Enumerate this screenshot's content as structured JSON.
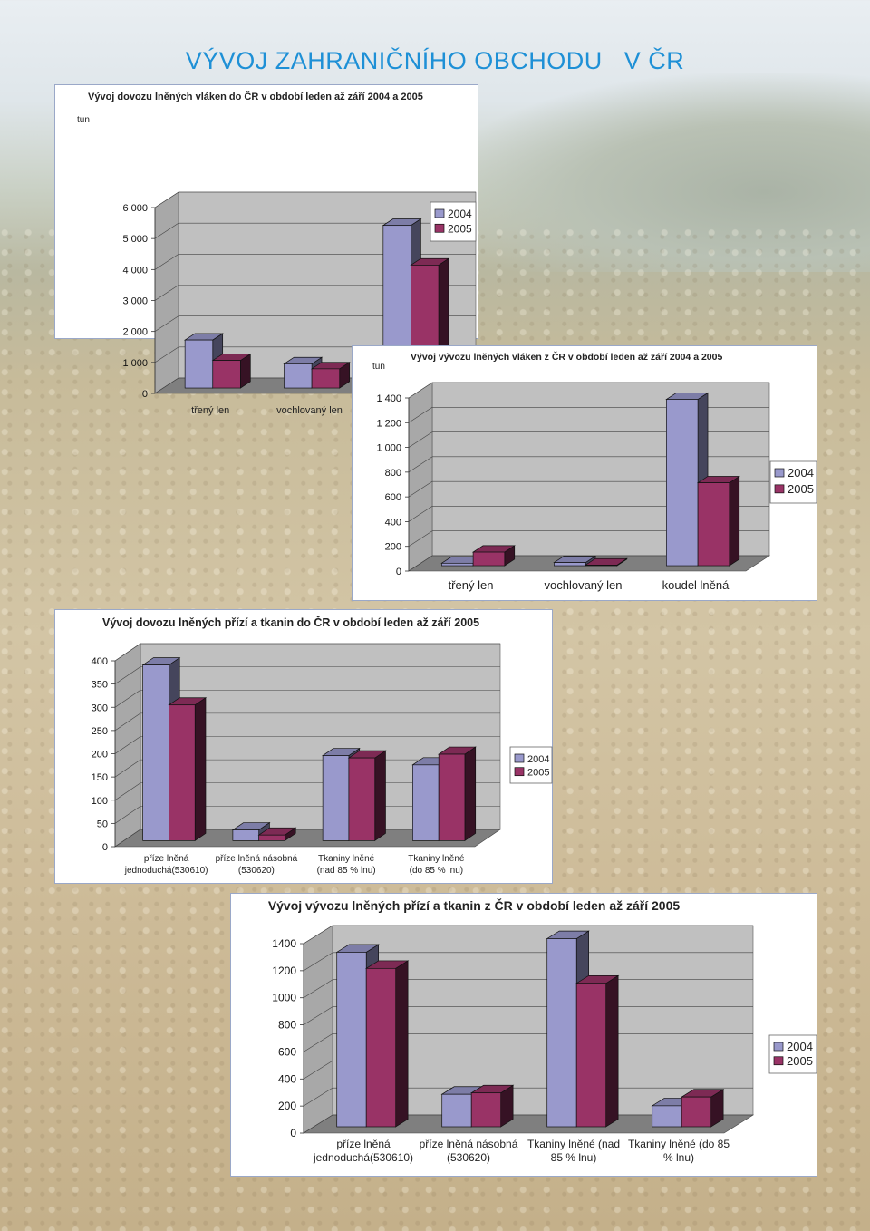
{
  "page": {
    "title": "VÝVOJ ZAHRANIČNÍHO OBCHODU   V ČR"
  },
  "colors": {
    "series_2004": "#9999cc",
    "series_2005": "#993366",
    "wall": "#c0c0c0",
    "title": "#1e90d6"
  },
  "chart_data": [
    {
      "type": "bar",
      "title": "Vývoj dovozu lněných vláken do ČR v období leden až září 2004 a 2005",
      "ylabel": "tun",
      "categories": [
        "třený len",
        "vochlovaný len",
        "koudel lněná"
      ],
      "series": [
        {
          "name": "2004",
          "values": [
            1550,
            780,
            5250
          ]
        },
        {
          "name": "2005",
          "values": [
            890,
            620,
            3970
          ]
        }
      ],
      "ylim": [
        0,
        6000
      ],
      "yticks": [
        0,
        1000,
        2000,
        3000,
        4000,
        5000,
        6000
      ],
      "ytick_labels": [
        "0",
        "1 000",
        "2 000",
        "3 000",
        "4 000",
        "5 000",
        "6 000"
      ],
      "legend": "right",
      "grid": false
    },
    {
      "type": "bar",
      "title": "Vývoj vývozu lněných vláken z ČR v období leden až září 2004 a 2005",
      "ylabel": "tun",
      "categories": [
        "třený len",
        "vochlovaný len",
        "koudel lněná"
      ],
      "series": [
        {
          "name": "2004",
          "values": [
            20,
            25,
            1345
          ]
        },
        {
          "name": "2005",
          "values": [
            110,
            5,
            670
          ]
        }
      ],
      "ylim": [
        0,
        1400
      ],
      "yticks": [
        0,
        200,
        400,
        600,
        800,
        1000,
        1200,
        1400
      ],
      "ytick_labels": [
        "0",
        "200",
        "400",
        "600",
        "800",
        "1 000",
        "1 200",
        "1 400"
      ],
      "legend": "right",
      "grid": false
    },
    {
      "type": "bar",
      "title": "Vývoj dovozu lněných přízí a tkanin do ČR v období leden až září 2005",
      "ylabel": "",
      "categories": [
        [
          "příze lněná",
          "jednoduchá(530610)"
        ],
        [
          "příze lněná násobná",
          "(530620)"
        ],
        [
          "Tkaniny lněné",
          "(nad 85 % lnu)"
        ],
        [
          "Tkaniny lněné",
          "(do 85 % lnu)"
        ]
      ],
      "series": [
        {
          "name": "2004",
          "values": [
            378,
            23,
            183,
            163
          ]
        },
        {
          "name": "2005",
          "values": [
            292,
            12,
            178,
            186
          ]
        }
      ],
      "ylim": [
        0,
        400
      ],
      "yticks": [
        0,
        50,
        100,
        150,
        200,
        250,
        300,
        350,
        400
      ],
      "ytick_labels": [
        "0",
        "50",
        "100",
        "150",
        "200",
        "250",
        "300",
        "350",
        "400"
      ],
      "legend": "right",
      "grid": false
    },
    {
      "type": "bar",
      "title": "Vývoj vývozu lněných přízí a tkanin z ČR v období leden až září 2005",
      "ylabel": "",
      "categories": [
        [
          "příze lněná",
          "jednoduchá(530610)"
        ],
        [
          "příze lněná násobná",
          "(530620)"
        ],
        [
          "Tkaniny lněné (nad",
          "85 % lnu)"
        ],
        [
          "Tkaniny lněné (do 85",
          "% lnu)"
        ]
      ],
      "series": [
        {
          "name": "2004",
          "values": [
            1290,
            240,
            1390,
            155
          ]
        },
        {
          "name": "2005",
          "values": [
            1170,
            250,
            1060,
            220
          ]
        }
      ],
      "ylim": [
        0,
        1400
      ],
      "yticks": [
        0,
        200,
        400,
        600,
        800,
        1000,
        1200,
        1400
      ],
      "ytick_labels": [
        "0",
        "200",
        "400",
        "600",
        "800",
        "1000",
        "1200",
        "1400"
      ],
      "legend": "right",
      "grid": false
    }
  ]
}
